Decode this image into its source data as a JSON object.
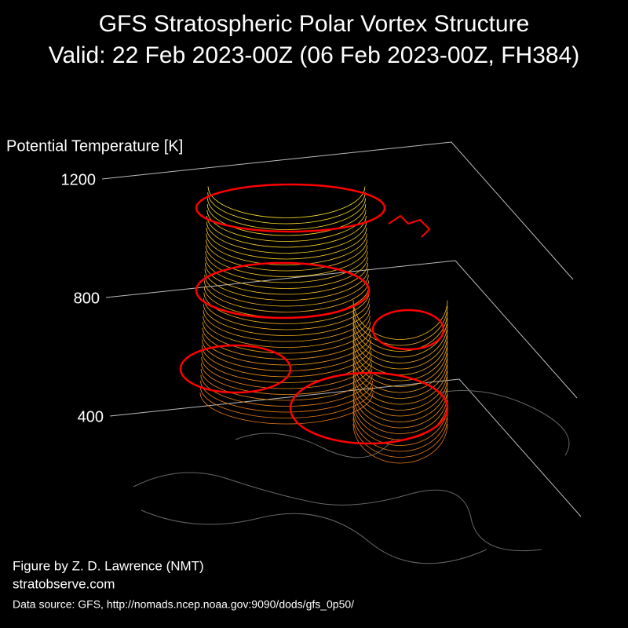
{
  "chart_data": {
    "type": "vortex3d",
    "title": [
      "GFS Stratospheric Polar Vortex Structure",
      "Valid: 22 Feb 2023-00Z  (06 Feb 2023-00Z, FH384)"
    ],
    "zlabel": "Potential Temperature [K]",
    "zlim": [
      400,
      1200
    ],
    "zticks": [
      400,
      800,
      1200
    ],
    "credits": [
      "Figure by Z. D. Lawrence (NMT)",
      "stratobserve.com"
    ],
    "source": "Data source: GFS, http://nomads.ncep.noaa.gov:9090/dods/gfs_0p50/"
  }
}
